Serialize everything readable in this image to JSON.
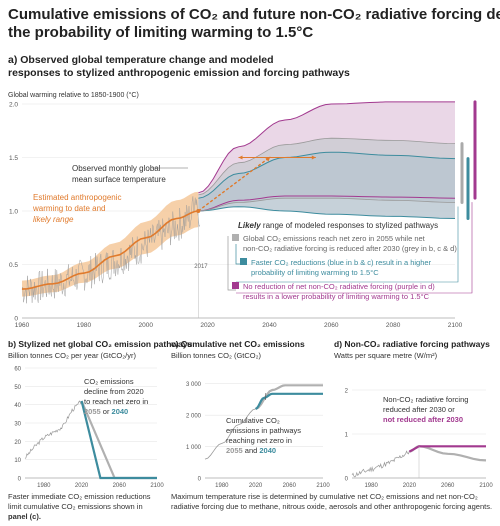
{
  "title_line1": "Cumulative emissions of CO₂ and future non-CO₂ radiative forcing determine",
  "title_line2": "the probability of limiting warming to 1.5°C",
  "colors": {
    "observed": "#999999",
    "estimated": "#e07a2c",
    "estimated_band": "#f5c89a",
    "grey_pathway": "#b0b0b0",
    "blue_pathway": "#3d8c9e",
    "purple_pathway": "#a2398f",
    "blue_band": "#cfe0e6",
    "purple_band": "#e8d3e4"
  },
  "panel_a": {
    "heading_line1": "a) Observed global temperature change and modeled",
    "heading_line2": "responses to stylized anthropogenic emission and forcing pathways",
    "axis_title": "Global warming relative to 1850-1900 (°C)",
    "y_ticks": [
      "2.0",
      "1.5",
      "1.0",
      "0.5",
      "0"
    ],
    "x_ticks": [
      "1960",
      "1980",
      "2000",
      "2020",
      "2040",
      "2060",
      "2080",
      "2100"
    ],
    "year_marker": "2017",
    "label_observed_1": "Observed monthly global",
    "label_observed_2": "mean surface temperature",
    "label_estimated_1": "Estimated anthropogenic",
    "label_estimated_2": "warming to date and",
    "label_estimated_3": "likely range",
    "legend_heading_em": "Likely",
    "legend_heading_rest": " range of modeled responses to stylized pathways",
    "legend_grey_1": "Global CO₂ emissions reach net zero in 2055 while net",
    "legend_grey_2": "non-CO₂ radiative forcing is reduced after 2030 (grey in b, c & d)",
    "legend_blue_1": "Faster CO₂ reductions (blue in b & c) result in a higher",
    "legend_blue_2": "probability of limiting warming to 1.5°C",
    "legend_purple_1": "No reduction of net non-CO₂ radiative forcing (purple in d)",
    "legend_purple_2": "results in a lower probability of limiting warming to 1.5°C"
  },
  "panel_b": {
    "heading": "b) Stylized net global CO₂ emission pathways",
    "unit": "Billion tonnes CO₂ per year (GtCO₂/yr)",
    "y_ticks": [
      "60",
      "50",
      "40",
      "30",
      "20",
      "10",
      "0"
    ],
    "x_ticks": [
      "1980",
      "2020",
      "2060",
      "2100"
    ],
    "note_1": "CO₂ emissions",
    "note_2": "decline from 2020",
    "note_3": "to reach net zero in",
    "note_4a": "2055",
    "note_4b": " or ",
    "note_4c": "2040",
    "caption_1": "Faster immediate CO₂ emission reductions",
    "caption_2": "limit cumulative CO₂ emissions shown in",
    "caption_3": "panel (c)."
  },
  "panel_c": {
    "heading": "c) Cumulative net CO₂ emissions",
    "unit": "Billion tonnes CO₂ (GtCO₂)",
    "y_ticks": [
      "3 000",
      "2 000",
      "1 000",
      "0"
    ],
    "x_ticks": [
      "1980",
      "2020",
      "2060",
      "2100"
    ],
    "note_1": "Cumulative CO₂",
    "note_2": "emissions in pathways",
    "note_3": "reaching net zero in",
    "note_4a": "2055",
    "note_4b": " and ",
    "note_4c": "2040",
    "caption_1": "Maximum temperature rise is determined by cumulative net CO₂ emissions and net non-CO₂",
    "caption_2": "radiative forcing due to methane, nitrous oxide, aerosols and other anthropogenic forcing agents."
  },
  "panel_d": {
    "heading": "d) Non-CO₂ radiative forcing pathways",
    "unit": "Watts per square metre (W/m²)",
    "y_ticks": [
      "2",
      "1",
      "0"
    ],
    "x_ticks": [
      "1980",
      "2020",
      "2060",
      "2100"
    ],
    "note_1": "Non-CO₂ radiative forcing",
    "note_2": "reduced after 2030 or",
    "note_3": "not reduced after 2030"
  },
  "chart_data": [
    {
      "type": "area",
      "panel": "a",
      "ylabel": "Global warming relative to 1850-1900 (°C)",
      "xlim": [
        1960,
        2100
      ],
      "ylim": [
        0,
        2.0
      ],
      "estimated_anthropogenic_warming": {
        "x": [
          1960,
          1970,
          1980,
          1990,
          2000,
          2010,
          2017
        ],
        "y": [
          0.27,
          0.32,
          0.42,
          0.58,
          0.75,
          0.93,
          1.0
        ],
        "likely_low": [
          0.2,
          0.24,
          0.33,
          0.46,
          0.6,
          0.77,
          0.85
        ],
        "likely_high": [
          0.35,
          0.4,
          0.52,
          0.7,
          0.9,
          1.1,
          1.18
        ],
        "projection_x": [
          2017,
          2040
        ],
        "projection_y": [
          1.0,
          1.5
        ]
      },
      "likely_ranges": [
        {
          "name": "grey",
          "x": [
            2017,
            2030,
            2045,
            2060,
            2080,
            2100
          ],
          "low": [
            1.0,
            1.08,
            1.12,
            1.12,
            1.1,
            1.08
          ],
          "high": [
            1.15,
            1.45,
            1.62,
            1.68,
            1.66,
            1.63
          ]
        },
        {
          "name": "blue",
          "x": [
            2017,
            2030,
            2045,
            2060,
            2080,
            2100
          ],
          "low": [
            1.0,
            1.04,
            1.0,
            0.97,
            0.95,
            0.93
          ],
          "high": [
            1.12,
            1.35,
            1.5,
            1.55,
            1.52,
            1.49
          ]
        },
        {
          "name": "purple",
          "x": [
            2017,
            2030,
            2045,
            2060,
            2080,
            2100
          ],
          "low": [
            1.0,
            1.1,
            1.14,
            1.14,
            1.13,
            1.12
          ],
          "high": [
            1.17,
            1.6,
            1.85,
            2.0,
            2.02,
            2.02
          ]
        }
      ]
    },
    {
      "type": "line",
      "panel": "b",
      "xlim": [
        1960,
        2100
      ],
      "ylim": [
        0,
        60
      ],
      "series": [
        {
          "name": "historical",
          "x": [
            1960,
            1970,
            1980,
            1990,
            2000,
            2010,
            2020
          ],
          "y": [
            11,
            17,
            22,
            25,
            28,
            37,
            42
          ]
        },
        {
          "name": "grey",
          "x": [
            2020,
            2055,
            2100
          ],
          "y": [
            42,
            0,
            0
          ]
        },
        {
          "name": "blue",
          "x": [
            2020,
            2040,
            2100
          ],
          "y": [
            42,
            0,
            0
          ]
        }
      ]
    },
    {
      "type": "line",
      "panel": "c",
      "xlim": [
        1960,
        2100
      ],
      "ylim": [
        0,
        3500
      ],
      "series": [
        {
          "name": "historical",
          "x": [
            1960,
            1980,
            2000,
            2020
          ],
          "y": [
            600,
            1100,
            1700,
            2200
          ]
        },
        {
          "name": "grey",
          "x": [
            2020,
            2040,
            2055,
            2100
          ],
          "y": [
            2200,
            2800,
            2950,
            2950
          ]
        },
        {
          "name": "blue",
          "x": [
            2020,
            2030,
            2040,
            2100
          ],
          "y": [
            2200,
            2550,
            2680,
            2680
          ]
        }
      ]
    },
    {
      "type": "line",
      "panel": "d",
      "xlim": [
        1960,
        2100
      ],
      "ylim": [
        0,
        2.5
      ],
      "series": [
        {
          "name": "historical",
          "x": [
            1960,
            1980,
            2000,
            2020
          ],
          "y": [
            0.05,
            0.2,
            0.35,
            0.6
          ]
        },
        {
          "name": "grey",
          "x": [
            2020,
            2030,
            2060,
            2100
          ],
          "y": [
            0.6,
            0.72,
            0.55,
            0.4
          ]
        },
        {
          "name": "purple",
          "x": [
            2020,
            2030,
            2100
          ],
          "y": [
            0.6,
            0.72,
            0.72
          ]
        }
      ]
    }
  ]
}
